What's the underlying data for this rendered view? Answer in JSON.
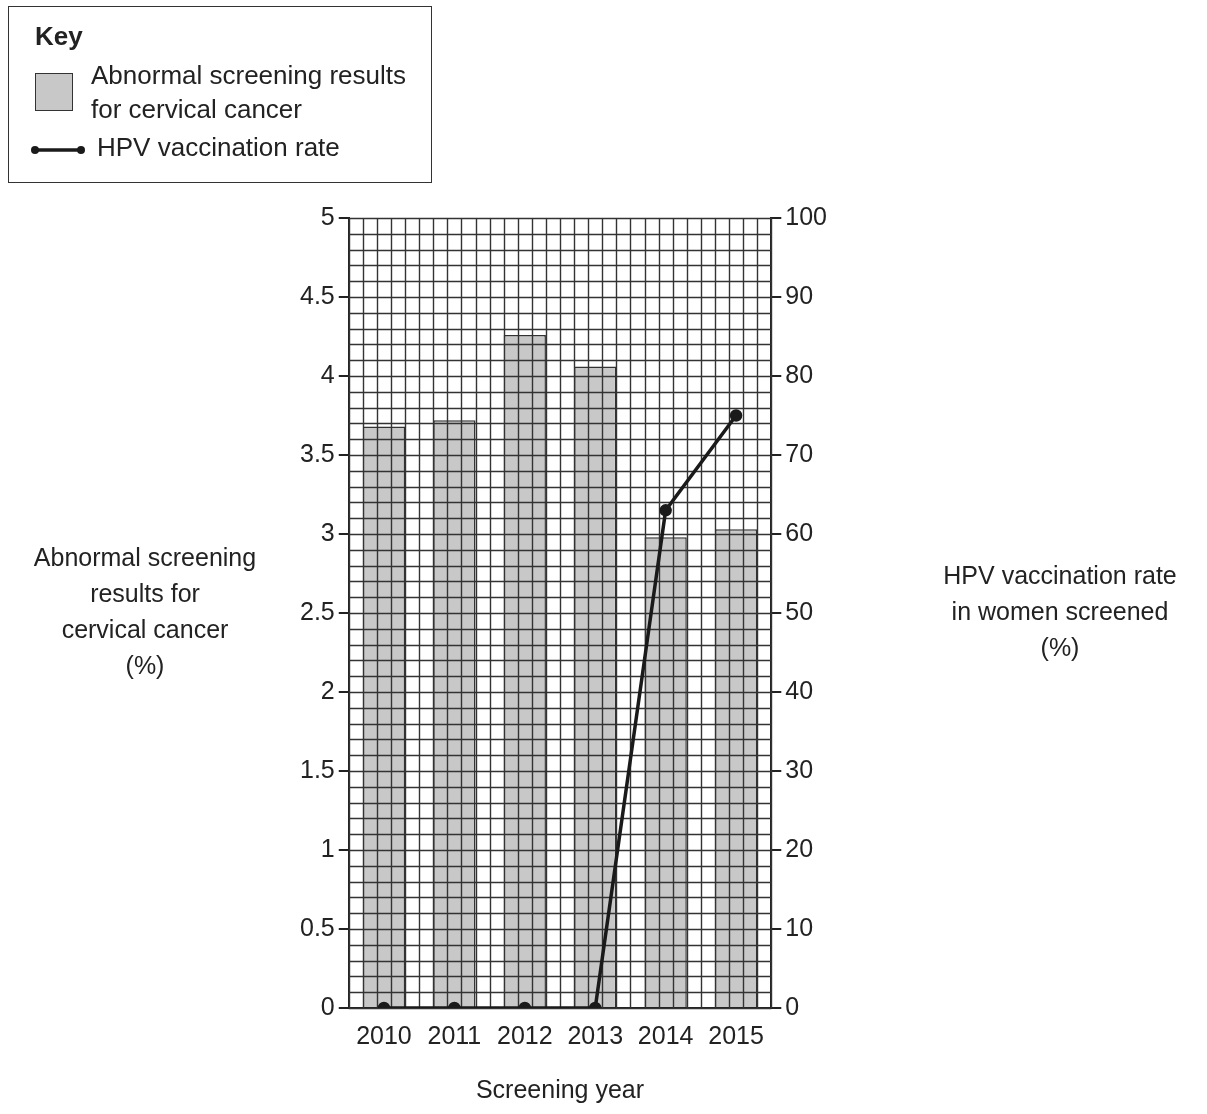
{
  "chart_data": {
    "type": "bar",
    "xlabel": "Screening year",
    "ylabel": "Abnormal screening\nresults for\ncervical cancer\n(%)",
    "y2label": "HPV vaccination rate\nin women screened\n(%)",
    "legend_title": "Key",
    "categories": [
      "2010",
      "2011",
      "2012",
      "2013",
      "2014",
      "2015"
    ],
    "series": [
      {
        "name": "Abnormal screening results for cervical cancer",
        "color": "#c8c8c8",
        "values": [
          3.68,
          3.72,
          4.26,
          4.06,
          2.98,
          3.03
        ]
      },
      {
        "name": "HPV vaccination rate",
        "type": "line",
        "axis": "y2",
        "color": "#1a1a1a",
        "values": [
          0,
          0,
          0,
          0,
          63,
          75
        ]
      }
    ],
    "ylim": [
      0,
      5
    ],
    "yticks": [
      0,
      0.5,
      1,
      1.5,
      2,
      2.5,
      3,
      3.5,
      4,
      4.5,
      5
    ],
    "y2lim": [
      0,
      100
    ],
    "y2ticks": [
      0,
      10,
      20,
      30,
      40,
      50,
      60,
      70,
      80,
      90,
      100
    ],
    "grid": true,
    "legend": "top left",
    "marker": "circle",
    "line_style": "solid"
  }
}
